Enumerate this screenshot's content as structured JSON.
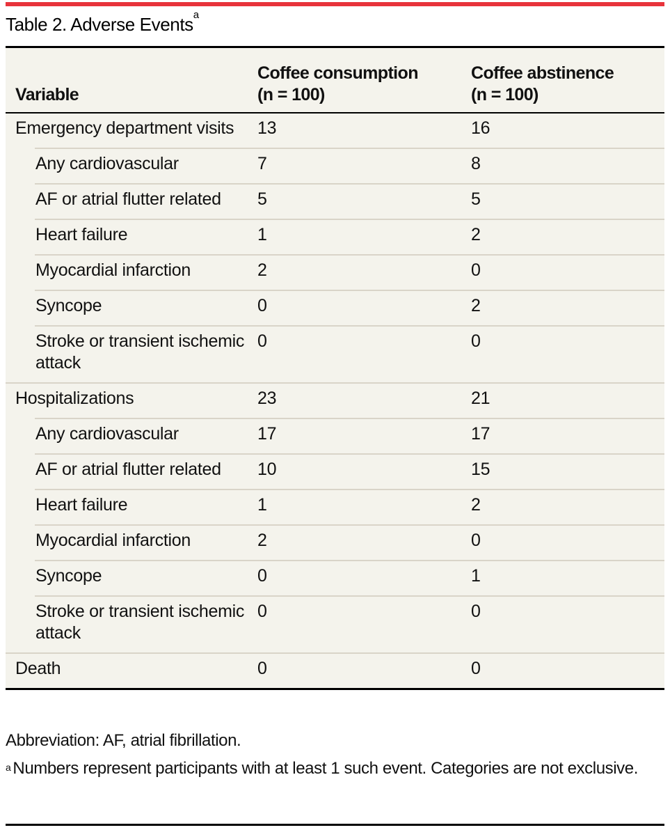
{
  "title": {
    "text": "Table 2. Adverse Events",
    "footnote_marker": "a"
  },
  "colors": {
    "accent_bar": "#e8333b",
    "table_background": "#f4f3ec",
    "rule": "#000000",
    "row_separator": "#d9d4c8"
  },
  "table": {
    "headers": [
      {
        "line1": "",
        "line2": "Variable"
      },
      {
        "line1": "Coffee consumption",
        "line2": "(n = 100)"
      },
      {
        "line1": "Coffee abstinence",
        "line2": "(n = 100)"
      }
    ],
    "rows": [
      {
        "level": "parent",
        "label": "Emergency department visits",
        "consumption": "13",
        "abstinence": "16"
      },
      {
        "level": "child",
        "label": "Any cardiovascular",
        "consumption": "7",
        "abstinence": "8"
      },
      {
        "level": "child",
        "label": "AF or atrial flutter related",
        "consumption": "5",
        "abstinence": "5"
      },
      {
        "level": "child",
        "label": "Heart failure",
        "consumption": "1",
        "abstinence": "2"
      },
      {
        "level": "child",
        "label": "Myocardial infarction",
        "consumption": "2",
        "abstinence": "0"
      },
      {
        "level": "child",
        "label": "Syncope",
        "consumption": "0",
        "abstinence": "2"
      },
      {
        "level": "child",
        "label": "Stroke or transient ischemic attack",
        "consumption": "0",
        "abstinence": "0"
      },
      {
        "level": "parent",
        "label": "Hospitalizations",
        "consumption": "23",
        "abstinence": "21"
      },
      {
        "level": "child",
        "label": "Any cardiovascular",
        "consumption": "17",
        "abstinence": "17"
      },
      {
        "level": "child",
        "label": "AF or atrial flutter related",
        "consumption": "10",
        "abstinence": "15"
      },
      {
        "level": "child",
        "label": "Heart failure",
        "consumption": "1",
        "abstinence": "2"
      },
      {
        "level": "child",
        "label": "Myocardial infarction",
        "consumption": "2",
        "abstinence": "0"
      },
      {
        "level": "child",
        "label": "Syncope",
        "consumption": "0",
        "abstinence": "1"
      },
      {
        "level": "child",
        "label": "Stroke or transient ischemic attack",
        "consumption": "0",
        "abstinence": "0"
      },
      {
        "level": "parent",
        "label": "Death",
        "consumption": "0",
        "abstinence": "0"
      }
    ]
  },
  "footnotes": {
    "abbreviation": "Abbreviation: AF, atrial fibrillation.",
    "note_marker": "a",
    "note_text": "Numbers represent participants with at least 1 such event. Categories are not exclusive."
  }
}
